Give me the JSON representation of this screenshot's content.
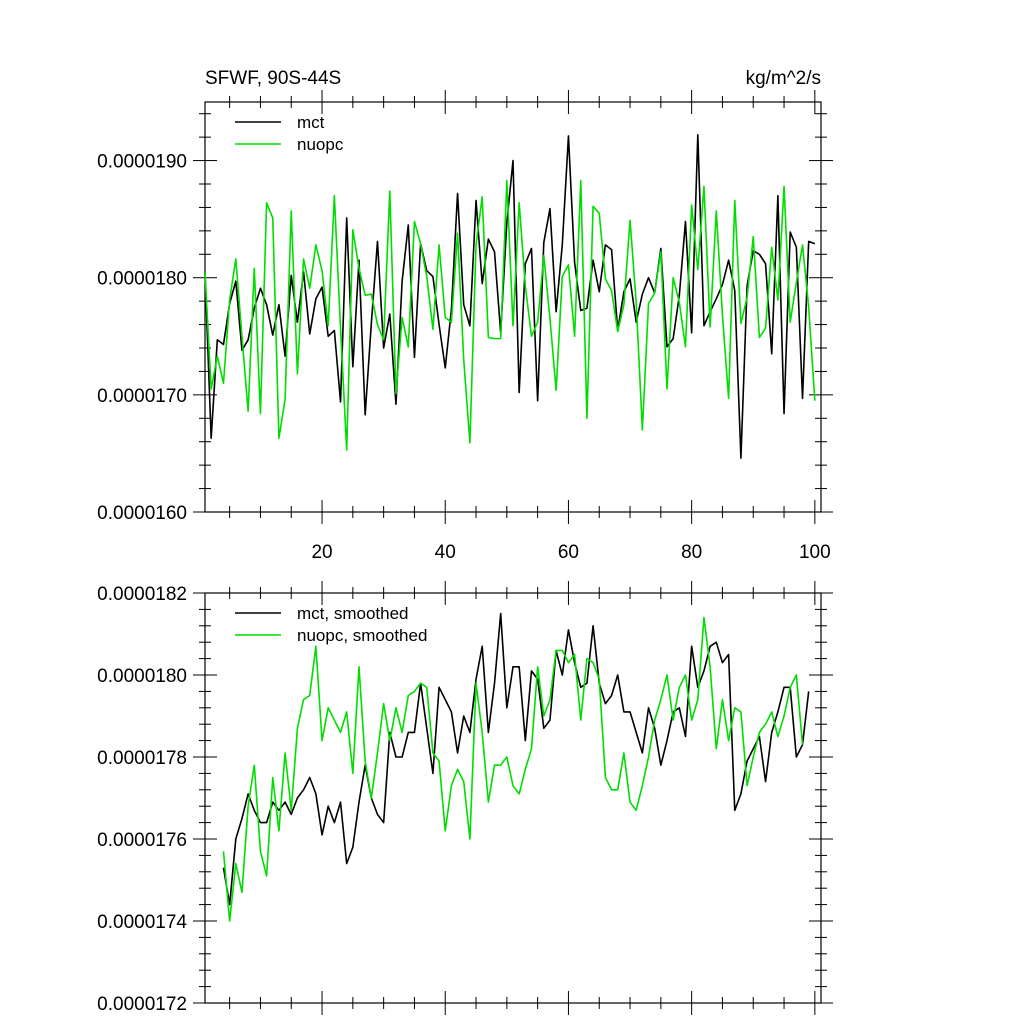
{
  "chart_data": [
    {
      "type": "line",
      "title": "SFWF, 90S-44S",
      "units": "kg/m^2/s",
      "xlim": [
        1,
        101
      ],
      "ylim": [
        1.6e-05,
        1.95e-05
      ],
      "x_ticks": [
        20,
        40,
        60,
        80,
        100
      ],
      "x_tick_labels": [
        "20",
        "40",
        "60",
        "80",
        "100"
      ],
      "y_ticks": [
        1.6e-05,
        1.7e-05,
        1.8e-05,
        1.9e-05
      ],
      "y_tick_labels": [
        "0.0000160",
        "0.0000170",
        "0.0000180",
        "0.0000190"
      ],
      "legend_position": "top-left",
      "colors": {
        "mct": "#000000",
        "nuopc": "#00dd00"
      },
      "series": [
        {
          "name": "mct",
          "x_start": 1,
          "values": [
            1.805e-05,
            1.663e-05,
            1.747e-05,
            1.743e-05,
            1.778e-05,
            1.797e-05,
            1.738e-05,
            1.747e-05,
            1.774e-05,
            1.791e-05,
            1.777e-05,
            1.751e-05,
            1.777e-05,
            1.733e-05,
            1.802e-05,
            1.762e-05,
            1.805e-05,
            1.752e-05,
            1.782e-05,
            1.792e-05,
            1.75e-05,
            1.755e-05,
            1.694e-05,
            1.851e-05,
            1.724e-05,
            1.815e-05,
            1.683e-05,
            1.761e-05,
            1.831e-05,
            1.74e-05,
            1.769e-05,
            1.692e-05,
            1.797e-05,
            1.845e-05,
            1.732e-05,
            1.829e-05,
            1.806e-05,
            1.801e-05,
            1.76e-05,
            1.723e-05,
            1.773e-05,
            1.872e-05,
            1.777e-05,
            1.759e-05,
            1.866e-05,
            1.795e-05,
            1.833e-05,
            1.822e-05,
            1.753e-05,
            1.847e-05,
            1.9e-05,
            1.702e-05,
            1.812e-05,
            1.825e-05,
            1.695e-05,
            1.83e-05,
            1.859e-05,
            1.771e-05,
            1.828e-05,
            1.921e-05,
            1.813e-05,
            1.772e-05,
            1.774e-05,
            1.815e-05,
            1.788e-05,
            1.828e-05,
            1.824e-05,
            1.755e-05,
            1.788e-05,
            1.799e-05,
            1.762e-05,
            1.786e-05,
            1.8e-05,
            1.787e-05,
            1.825e-05,
            1.741e-05,
            1.748e-05,
            1.785e-05,
            1.848e-05,
            1.753e-05,
            1.922e-05,
            1.759e-05,
            1.771e-05,
            1.782e-05,
            1.794e-05,
            1.815e-05,
            1.789e-05,
            1.646e-05,
            1.793e-05,
            1.823e-05,
            1.82e-05,
            1.812e-05,
            1.735e-05,
            1.87e-05,
            1.684e-05,
            1.839e-05,
            1.826e-05,
            1.697e-05,
            1.831e-05,
            1.829e-05
          ]
        },
        {
          "name": "nuopc",
          "x_start": 1,
          "values": [
            1.805e-05,
            1.705e-05,
            1.733e-05,
            1.71e-05,
            1.781e-05,
            1.816e-05,
            1.75e-05,
            1.686e-05,
            1.808e-05,
            1.684e-05,
            1.864e-05,
            1.851e-05,
            1.663e-05,
            1.696e-05,
            1.857e-05,
            1.718e-05,
            1.816e-05,
            1.791e-05,
            1.828e-05,
            1.806e-05,
            1.759e-05,
            1.87e-05,
            1.757e-05,
            1.653e-05,
            1.841e-05,
            1.808e-05,
            1.785e-05,
            1.786e-05,
            1.76e-05,
            1.747e-05,
            1.874e-05,
            1.701e-05,
            1.766e-05,
            1.741e-05,
            1.848e-05,
            1.829e-05,
            1.801e-05,
            1.756e-05,
            1.828e-05,
            1.766e-05,
            1.762e-05,
            1.838e-05,
            1.73e-05,
            1.659e-05,
            1.828e-05,
            1.869e-05,
            1.749e-05,
            1.748e-05,
            1.748e-05,
            1.883e-05,
            1.759e-05,
            1.864e-05,
            1.793e-05,
            1.75e-05,
            1.762e-05,
            1.819e-05,
            1.765e-05,
            1.704e-05,
            1.801e-05,
            1.811e-05,
            1.75e-05,
            1.883e-05,
            1.68e-05,
            1.861e-05,
            1.855e-05,
            1.799e-05,
            1.789e-05,
            1.754e-05,
            1.777e-05,
            1.849e-05,
            1.779e-05,
            1.67e-05,
            1.778e-05,
            1.787e-05,
            1.822e-05,
            1.705e-05,
            1.8e-05,
            1.779e-05,
            1.741e-05,
            1.862e-05,
            1.807e-05,
            1.878e-05,
            1.758e-05,
            1.857e-05,
            1.768e-05,
            1.697e-05,
            1.866e-05,
            1.761e-05,
            1.783e-05,
            1.835e-05,
            1.749e-05,
            1.757e-05,
            1.826e-05,
            1.781e-05,
            1.878e-05,
            1.762e-05,
            1.796e-05,
            1.828e-05,
            1.775e-05,
            1.695e-05
          ]
        }
      ]
    },
    {
      "type": "line",
      "xlim": [
        1,
        101
      ],
      "ylim": [
        1.72e-05,
        1.82e-05
      ],
      "y_ticks": [
        1.72e-05,
        1.74e-05,
        1.76e-05,
        1.78e-05,
        1.8e-05,
        1.82e-05
      ],
      "y_tick_labels": [
        "0.0000172",
        "0.0000174",
        "0.0000176",
        "0.0000178",
        "0.0000180",
        "0.0000182"
      ],
      "x_ticks": [
        20,
        40,
        60,
        80,
        100
      ],
      "legend_position": "top-left",
      "colors": {
        "mct": "#000000",
        "nuopc": "#00dd00"
      },
      "series": [
        {
          "name": "mct, smoothed",
          "x_start": 4,
          "values": [
            1.753e-05,
            1.744e-05,
            1.76e-05,
            1.765e-05,
            1.771e-05,
            1.767e-05,
            1.764e-05,
            1.764e-05,
            1.769e-05,
            1.767e-05,
            1.769e-05,
            1.766e-05,
            1.77e-05,
            1.772e-05,
            1.775e-05,
            1.771e-05,
            1.761e-05,
            1.768e-05,
            1.764e-05,
            1.769e-05,
            1.754e-05,
            1.758e-05,
            1.769e-05,
            1.778e-05,
            1.77e-05,
            1.766e-05,
            1.764e-05,
            1.786e-05,
            1.78e-05,
            1.78e-05,
            1.786e-05,
            1.786e-05,
            1.798e-05,
            1.787e-05,
            1.776e-05,
            1.797e-05,
            1.794e-05,
            1.791e-05,
            1.781e-05,
            1.79e-05,
            1.786e-05,
            1.799e-05,
            1.807e-05,
            1.786e-05,
            1.798e-05,
            1.815e-05,
            1.792e-05,
            1.802e-05,
            1.802e-05,
            1.784e-05,
            1.801e-05,
            1.799e-05,
            1.787e-05,
            1.789e-05,
            1.806e-05,
            1.8e-05,
            1.811e-05,
            1.803e-05,
            1.797e-05,
            1.798e-05,
            1.812e-05,
            1.798e-05,
            1.793e-05,
            1.795e-05,
            1.8e-05,
            1.791e-05,
            1.791e-05,
            1.786e-05,
            1.781e-05,
            1.792e-05,
            1.787e-05,
            1.778e-05,
            1.784e-05,
            1.791e-05,
            1.792e-05,
            1.785e-05,
            1.807e-05,
            1.797e-05,
            1.801e-05,
            1.807e-05,
            1.808e-05,
            1.803e-05,
            1.805e-05,
            1.767e-05,
            1.771e-05,
            1.779e-05,
            1.782e-05,
            1.785e-05,
            1.774e-05,
            1.786e-05,
            1.791e-05,
            1.797e-05,
            1.797e-05,
            1.78e-05,
            1.783e-05,
            1.796e-05
          ]
        },
        {
          "name": "nuopc, smoothed",
          "x_start": 4,
          "values": [
            1.757e-05,
            1.74e-05,
            1.754e-05,
            1.747e-05,
            1.768e-05,
            1.778e-05,
            1.757e-05,
            1.751e-05,
            1.775e-05,
            1.762e-05,
            1.781e-05,
            1.767e-05,
            1.787e-05,
            1.794e-05,
            1.795e-05,
            1.807e-05,
            1.784e-05,
            1.792e-05,
            1.789e-05,
            1.786e-05,
            1.791e-05,
            1.776e-05,
            1.802e-05,
            1.779e-05,
            1.77e-05,
            1.781e-05,
            1.793e-05,
            1.784e-05,
            1.792e-05,
            1.786e-05,
            1.795e-05,
            1.796e-05,
            1.798e-05,
            1.797e-05,
            1.781e-05,
            1.779e-05,
            1.762e-05,
            1.773e-05,
            1.777e-05,
            1.774e-05,
            1.76e-05,
            1.798e-05,
            1.786e-05,
            1.769e-05,
            1.778e-05,
            1.778e-05,
            1.78e-05,
            1.773e-05,
            1.771e-05,
            1.777e-05,
            1.782e-05,
            1.802e-05,
            1.79e-05,
            1.794e-05,
            1.806e-05,
            1.806e-05,
            1.803e-05,
            1.805e-05,
            1.789e-05,
            1.804e-05,
            1.803e-05,
            1.799e-05,
            1.775e-05,
            1.772e-05,
            1.772e-05,
            1.781e-05,
            1.769e-05,
            1.767e-05,
            1.773e-05,
            1.78e-05,
            1.789e-05,
            1.794e-05,
            1.8e-05,
            1.789e-05,
            1.797e-05,
            1.8e-05,
            1.789e-05,
            1.794e-05,
            1.814e-05,
            1.802e-05,
            1.782e-05,
            1.794e-05,
            1.784e-05,
            1.792e-05,
            1.791e-05,
            1.773e-05,
            1.78e-05,
            1.786e-05,
            1.788e-05,
            1.791e-05,
            1.785e-05,
            1.79e-05,
            1.797e-05,
            1.8e-05,
            1.783e-05
          ]
        }
      ]
    }
  ]
}
